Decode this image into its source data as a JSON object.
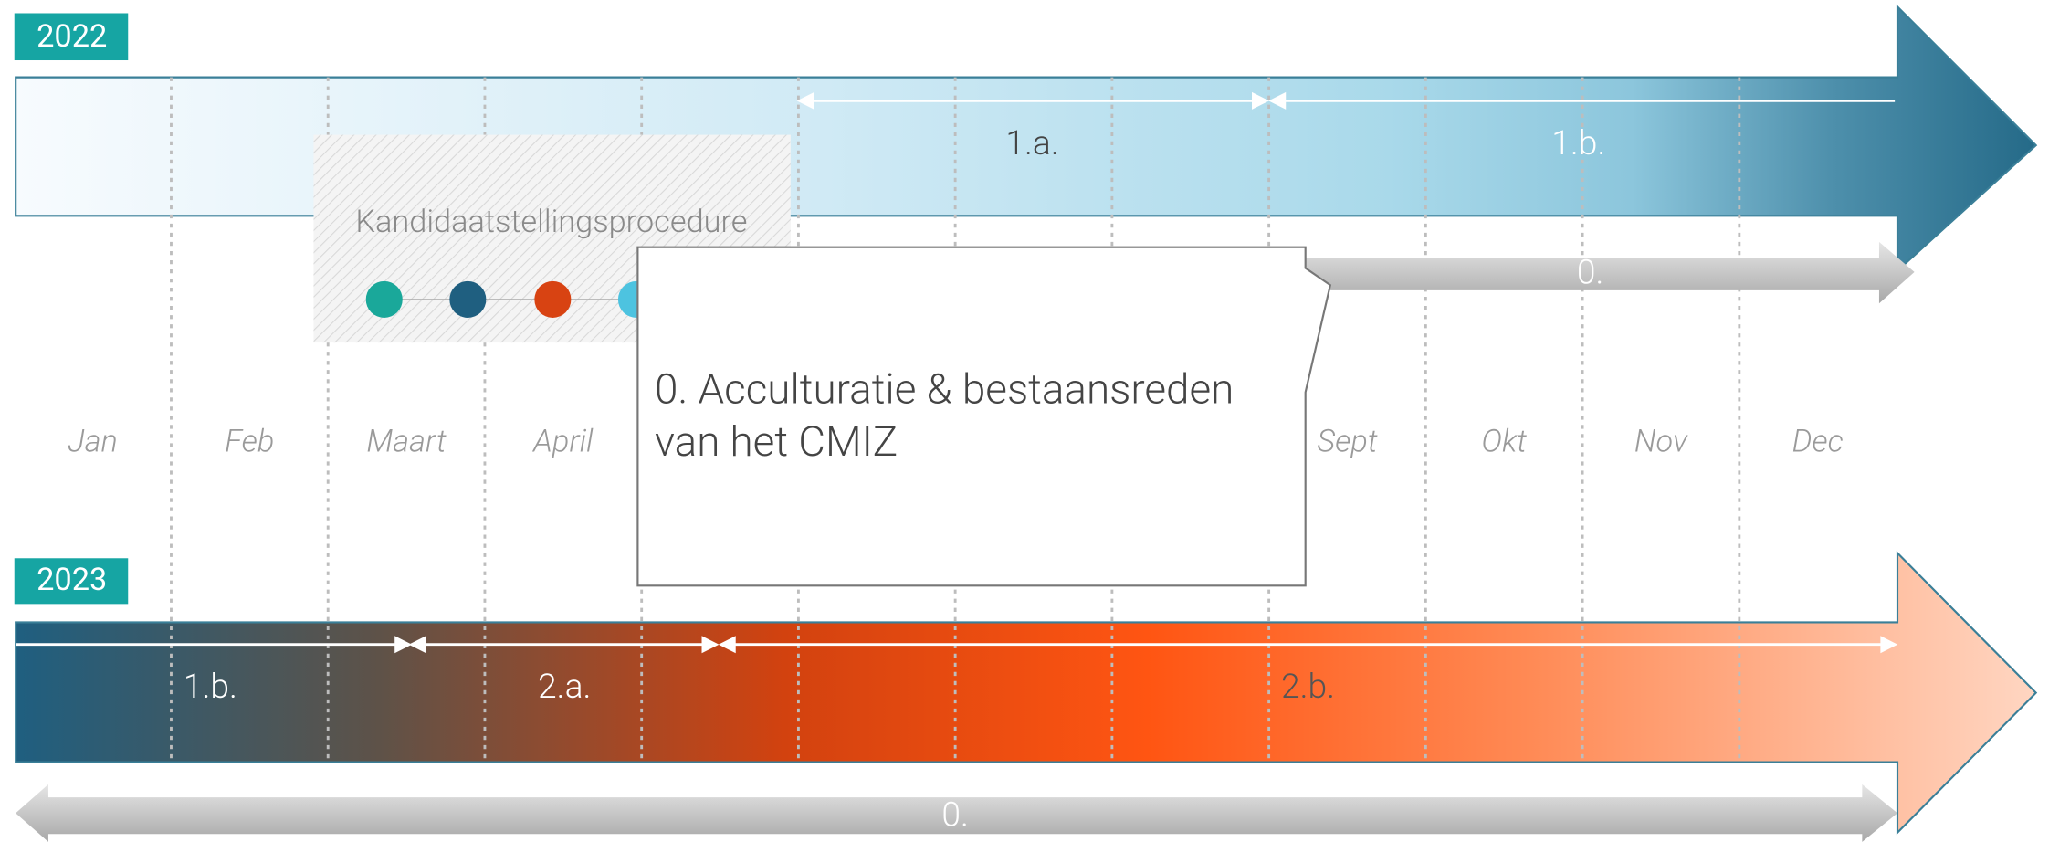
{
  "years": [
    "2022",
    "2023"
  ],
  "months": [
    "Jan",
    "Feb",
    "Maart",
    "April",
    "Sept",
    "Okt",
    "Nov",
    "Dec"
  ],
  "timeline_2022": {
    "phases": [
      "1.a.",
      "1.b."
    ],
    "track": "0."
  },
  "procedure": {
    "title": "Kandidaatstellingsprocedure"
  },
  "callout": {
    "lines": [
      "0. Acculturatie & bestaansreden",
      "van het CMIZ"
    ]
  },
  "timeline_2023": {
    "phases": [
      "1.b.",
      "2.a.",
      "2.b."
    ],
    "track": "0."
  }
}
